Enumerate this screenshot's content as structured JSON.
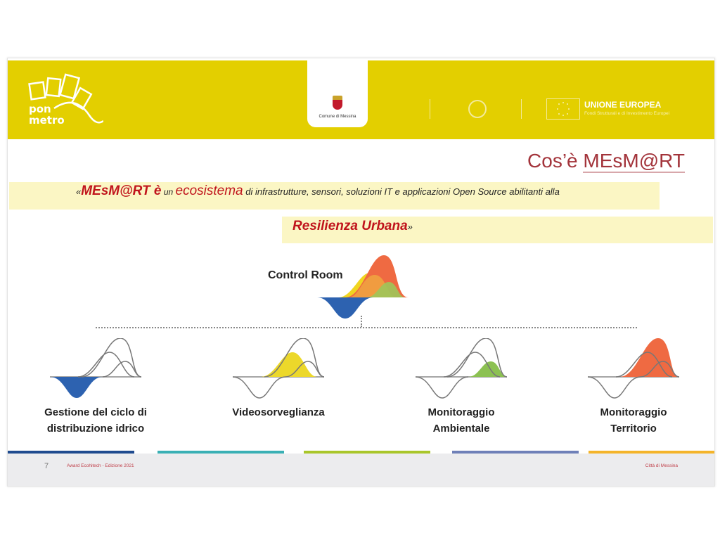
{
  "header": {
    "logo_text": "pon metro",
    "comune_label": "Comune di Messina",
    "eu_title": "UNIONE EUROPEA",
    "eu_subtitle": "Fondi Strutturali e di Investimento Europei"
  },
  "slide": {
    "title_prefix": "Cos’è ",
    "title_main": "MEsM@RT",
    "quote_open": "«",
    "quote_brand": "MEsM@RT è",
    "quote_un": " un ",
    "quote_eco": "ecosistema",
    "quote_rest": " di infrastrutture, sensori, soluzioni IT e applicazioni Open Source  abilitanti alla",
    "quote_line2": "Resilienza Urbana",
    "quote_close": "»",
    "control_room": "Control Room",
    "nodes": [
      {
        "label1": "Gestione del ciclo di",
        "label2": "distribuzione idrico",
        "color": "#2d62b0"
      },
      {
        "label1": "Videosorveglianza",
        "label2": "",
        "color": "#ecd82a"
      },
      {
        "label1": "Monitoraggio",
        "label2": "Ambientale",
        "color": "#8cc152"
      },
      {
        "label1": "Monitoraggio",
        "label2": "Territorio",
        "color": "#ef6a42"
      }
    ]
  },
  "footer": {
    "page": "7",
    "event": "Award Ecohitech - Edizione 2021",
    "city": "Città di Messina",
    "bar_colors": [
      "#1f4b8f",
      "#3ab0b5",
      "#a9c62a",
      "#6f80b8",
      "#f4b42a"
    ]
  }
}
